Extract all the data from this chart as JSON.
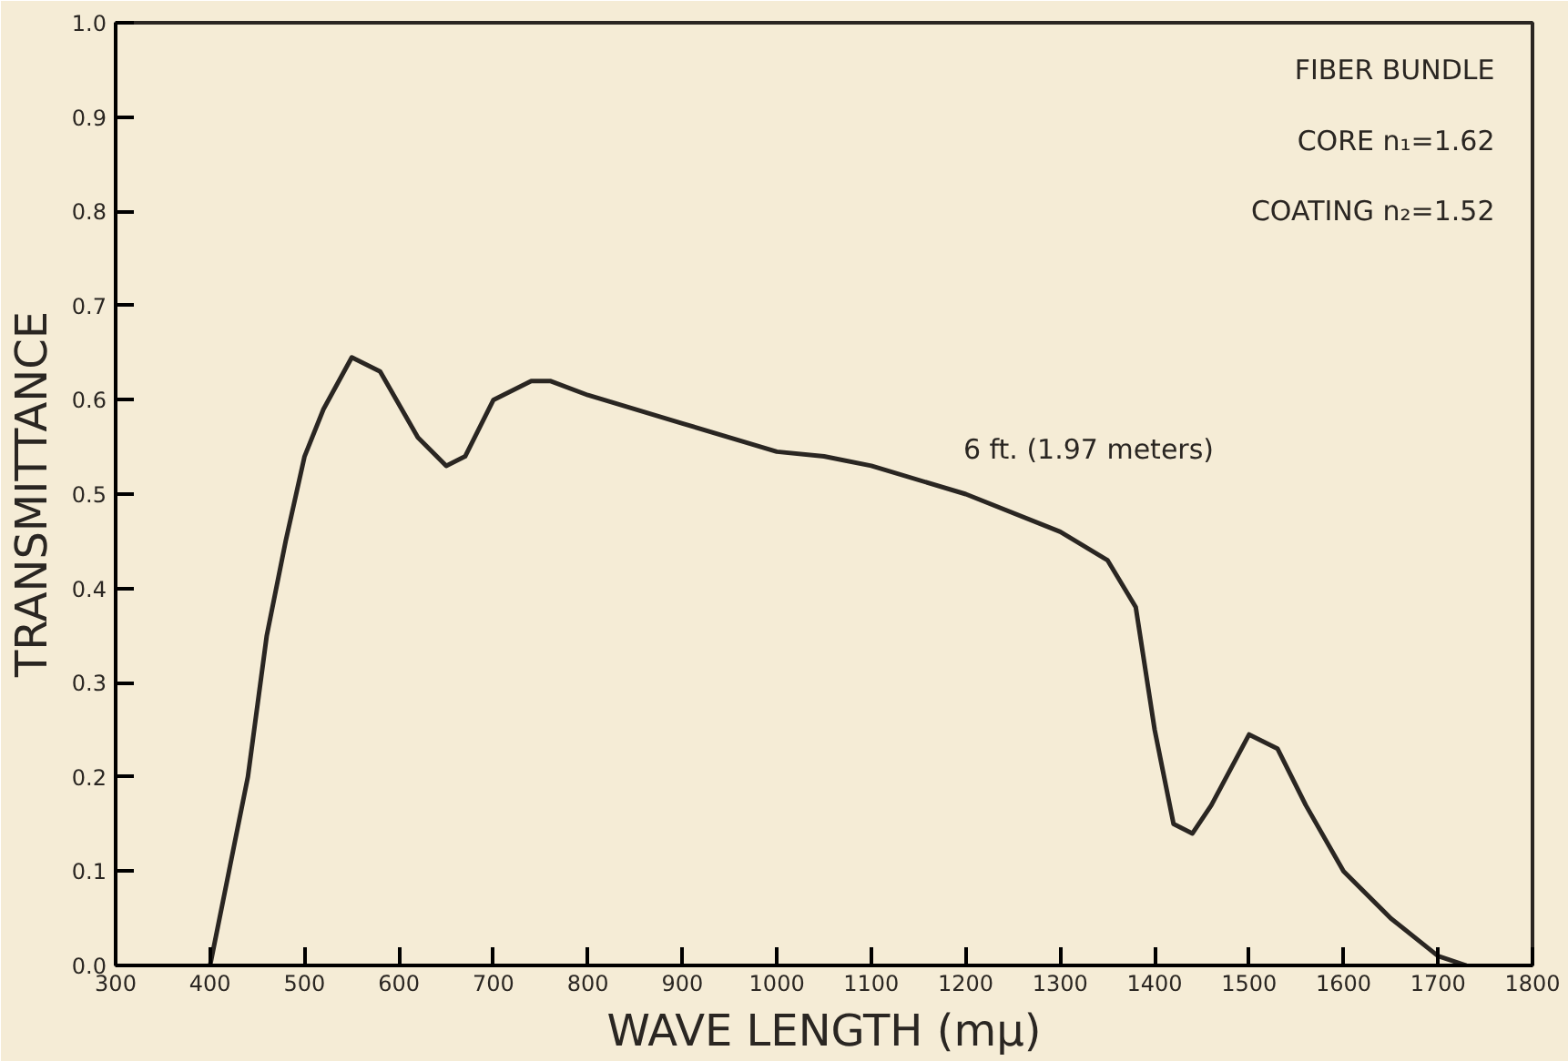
{
  "chart_data": {
    "type": "line",
    "xlabel": "WAVE LENGTH (mμ)",
    "ylabel": "TRANSMITTANCE",
    "x": [
      400,
      420,
      440,
      460,
      480,
      500,
      520,
      550,
      580,
      620,
      650,
      670,
      700,
      740,
      760,
      800,
      900,
      1000,
      1050,
      1100,
      1200,
      1300,
      1350,
      1380,
      1400,
      1420,
      1440,
      1460,
      1500,
      1530,
      1560,
      1600,
      1650,
      1700,
      1730
    ],
    "series": [
      {
        "name": "6 ft. (1.97 meters)",
        "color": "#2a2622",
        "values": [
          0.0,
          0.1,
          0.2,
          0.35,
          0.45,
          0.54,
          0.59,
          0.645,
          0.63,
          0.56,
          0.53,
          0.54,
          0.6,
          0.62,
          0.62,
          0.605,
          0.575,
          0.545,
          0.54,
          0.53,
          0.5,
          0.46,
          0.43,
          0.38,
          0.25,
          0.15,
          0.14,
          0.17,
          0.245,
          0.23,
          0.17,
          0.1,
          0.05,
          0.01,
          0.0
        ]
      }
    ],
    "annotations": [
      "FIBER BUNDLE",
      "CORE n₁=1.62",
      "COATING n₂=1.52"
    ],
    "xlim": [
      300,
      1800
    ],
    "xticks": [
      300,
      400,
      500,
      600,
      700,
      800,
      900,
      1000,
      1100,
      1200,
      1300,
      1400,
      1500,
      1600,
      1700,
      1800
    ],
    "ylim": [
      0,
      1
    ],
    "yticks": [
      {
        "value": 0,
        "label": "0.0"
      },
      0.1,
      0.2,
      0.3,
      0.4,
      0.5,
      0.6,
      0.7,
      0.8,
      0.9,
      {
        "value": 1,
        "label": "1.0"
      }
    ],
    "grid": false,
    "legend": false,
    "marker": "none",
    "line_style": "solid"
  }
}
